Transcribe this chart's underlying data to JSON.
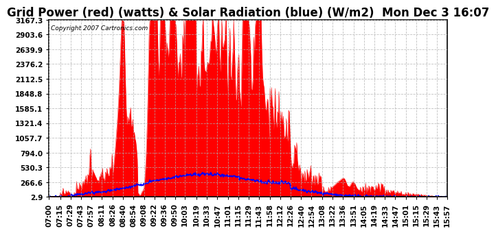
{
  "title": "Grid Power (red) (watts) & Solar Radiation (blue) (W/m2)  Mon Dec 3 16:07",
  "copyright": "Copyright 2007 Cartronics.com",
  "yticks": [
    2.9,
    266.6,
    530.3,
    794.0,
    1057.7,
    1321.4,
    1585.1,
    1848.8,
    2112.5,
    2376.2,
    2639.9,
    2903.6,
    3167.3
  ],
  "ymin": 2.9,
  "ymax": 3167.3,
  "bg_color": "#ffffff",
  "plot_bg": "#ffffff",
  "grid_color": "#b0b0b0",
  "red_color": "#ff0000",
  "blue_color": "#0000ff",
  "xtick_labels": [
    "07:00",
    "07:15",
    "07:29",
    "07:43",
    "07:57",
    "08:11",
    "08:26",
    "08:40",
    "08:54",
    "09:08",
    "09:22",
    "09:36",
    "09:50",
    "10:03",
    "10:19",
    "10:33",
    "10:47",
    "11:01",
    "11:15",
    "11:29",
    "11:43",
    "11:58",
    "12:12",
    "12:26",
    "12:40",
    "12:54",
    "13:08",
    "13:22",
    "13:36",
    "13:51",
    "14:05",
    "14:19",
    "14:33",
    "14:47",
    "15:01",
    "15:15",
    "15:29",
    "15:43",
    "15:57"
  ],
  "title_fontsize": 12,
  "tick_fontsize": 7.5
}
